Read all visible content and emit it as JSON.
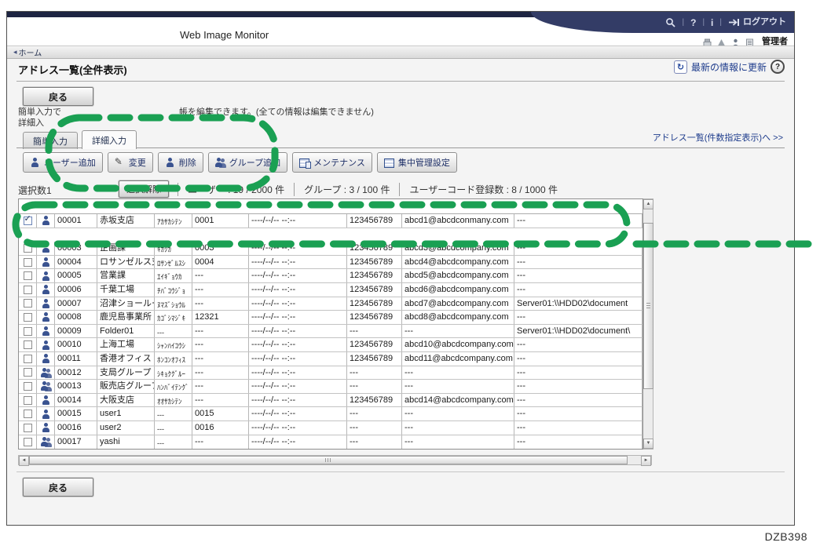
{
  "colors": {
    "banner_navy": "#333c66",
    "banner_dark": "#1d2442",
    "link_blue": "#1e3c8c",
    "annotation_green": "#1aa053"
  },
  "topbar": {
    "product_name": "Web Image Monitor",
    "icons": [
      "search-icon",
      "help-icon",
      "info-icon",
      "logout-icon"
    ],
    "help_glyph": "?",
    "info_glyph": "i",
    "logout_label": "ログアウト",
    "status_icons": [
      "printer-status-icon",
      "alert-status-icon",
      "user-status-icon",
      "document-status-icon"
    ],
    "role_label": "管理者"
  },
  "breadcrumb": {
    "home": "ホーム",
    "arrow": "◂"
  },
  "page": {
    "title": "アドレス一覧(全件表示)",
    "refresh_label": "最新の情報に更新",
    "refresh_glyph": "↻",
    "help_glyph": "?",
    "back_label": "戻る",
    "doc_code": "DZB398"
  },
  "instructions": {
    "line1_start": "簡単入力で",
    "line1_end": "帳を編集できます。(全ての情報は編集できません)",
    "line2_start": "詳細入"
  },
  "tabs": [
    {
      "label": "簡単入力",
      "active": false
    },
    {
      "label": "詳細入力",
      "active": true
    }
  ],
  "toolbar": {
    "buttons": [
      {
        "label": "ユーザー追加",
        "icon": "user-add"
      },
      {
        "label": "変更",
        "icon": "pencil"
      },
      {
        "label": "削除",
        "icon": "user-delete"
      },
      {
        "label": "グループ追加",
        "icon": "group-add"
      },
      {
        "label": "メンテナンス",
        "icon": "maintenance"
      },
      {
        "label": "集中管理設定",
        "icon": "central-management"
      }
    ]
  },
  "links": {
    "count_view": "アドレス一覧(件数指定表示)へ >>"
  },
  "selection": {
    "selected_label": "選択数1",
    "clear_button": "選択解除",
    "stats": [
      "ユーザー : 19 / 2000 件",
      "グループ : 3 / 100 件",
      "ユーザーコード登録数 : 8 / 1000 件"
    ]
  },
  "table": {
    "rows": [
      {
        "checked": true,
        "icon": "user",
        "number": "00001",
        "name": "赤坂支店",
        "kana": "ｱｶｻｶｼﾃﾝ",
        "code": "0001",
        "date": "----/--/-- --:--",
        "fax": "123456789",
        "email": "abcd1@abcdconmany.com",
        "folder": "---"
      },
      {
        "obscured": true,
        "icon": "",
        "number": "",
        "name": "",
        "kana": "",
        "code": "",
        "date": "",
        "fax": "",
        "email": "",
        "folder": ""
      },
      {
        "checked": false,
        "icon": "user",
        "number": "00003",
        "name": "企画課",
        "kana": "ｷｶｸｶ",
        "code": "0003",
        "date": "----/--/-- --:--",
        "fax": "123456789",
        "email": "abcd3@abcdcompany.com",
        "folder": "---"
      },
      {
        "checked": false,
        "icon": "user",
        "number": "00004",
        "name": "ロサンゼルス支局",
        "kana": "ﾛｻﾝｾﾞﾙｽｼ",
        "code": "0004",
        "date": "----/--/-- --:--",
        "fax": "123456789",
        "email": "abcd4@abcdcompany.com",
        "folder": "---"
      },
      {
        "checked": false,
        "icon": "user",
        "number": "00005",
        "name": "営業課",
        "kana": "ｴｲｷﾞｮｳｶ",
        "code": "---",
        "date": "----/--/-- --:--",
        "fax": "123456789",
        "email": "abcd5@abcdcompany.com",
        "folder": "---"
      },
      {
        "checked": false,
        "icon": "user",
        "number": "00006",
        "name": "千葉工場",
        "kana": "ﾁﾊﾞｺｳｼﾞｮ",
        "code": "---",
        "date": "----/--/-- --:--",
        "fax": "123456789",
        "email": "abcd6@abcdcompany.com",
        "folder": "---"
      },
      {
        "checked": false,
        "icon": "user",
        "number": "00007",
        "name": "沼津ショールーム",
        "kana": "ﾇﾏｽﾞｼｮｳﾙ",
        "code": "---",
        "date": "----/--/-- --:--",
        "fax": "123456789",
        "email": "abcd7@abcdcompany.com",
        "folder": "Server01:\\\\HDD02\\document"
      },
      {
        "checked": false,
        "icon": "user",
        "number": "00008",
        "name": "鹿児島事業所",
        "kana": "ｶｺﾞｼﾏｼﾞｷ",
        "code": "12321",
        "date": "----/--/-- --:--",
        "fax": "123456789",
        "email": "abcd8@abcdcompany.com",
        "folder": "---"
      },
      {
        "checked": false,
        "icon": "user",
        "number": "00009",
        "name": "Folder01",
        "kana": "---",
        "code": "---",
        "date": "----/--/-- --:--",
        "fax": "---",
        "email": "---",
        "folder": "Server01:\\\\HDD02\\document\\"
      },
      {
        "checked": false,
        "icon": "user",
        "number": "00010",
        "name": "上海工場",
        "kana": "ｼｬﾝﾊｲｺｳｼ",
        "code": "---",
        "date": "----/--/-- --:--",
        "fax": "123456789",
        "email": "abcd10@abcdcompany.com",
        "folder": "---"
      },
      {
        "checked": false,
        "icon": "user",
        "number": "00011",
        "name": "香港オフィス",
        "kana": "ﾎﾝｺﾝｵﾌｨｽ",
        "code": "---",
        "date": "----/--/-- --:--",
        "fax": "123456789",
        "email": "abcd11@abcdcompany.com",
        "folder": "---"
      },
      {
        "checked": false,
        "icon": "group",
        "number": "00012",
        "name": "支局グループ",
        "kana": "ｼｷｮｸｸﾞﾙｰ",
        "code": "---",
        "date": "----/--/-- --:--",
        "fax": "---",
        "email": "---",
        "folder": "---"
      },
      {
        "checked": false,
        "icon": "group",
        "number": "00013",
        "name": "販売店グループ",
        "kana": "ﾊﾝﾊﾞｲﾃﾝｸﾞ",
        "code": "---",
        "date": "----/--/-- --:--",
        "fax": "---",
        "email": "---",
        "folder": "---"
      },
      {
        "checked": false,
        "icon": "user",
        "number": "00014",
        "name": "大阪支店",
        "kana": "ｵｵｻｶｼﾃﾝ",
        "code": "---",
        "date": "----/--/-- --:--",
        "fax": "123456789",
        "email": "abcd14@abcdcompany.com",
        "folder": "---"
      },
      {
        "checked": false,
        "icon": "user",
        "number": "00015",
        "name": "user1",
        "kana": "---",
        "code": "0015",
        "date": "----/--/-- --:--",
        "fax": "---",
        "email": "---",
        "folder": "---"
      },
      {
        "checked": false,
        "icon": "user",
        "number": "00016",
        "name": "user2",
        "kana": "---",
        "code": "0016",
        "date": "----/--/-- --:--",
        "fax": "---",
        "email": "---",
        "folder": "---"
      },
      {
        "checked": false,
        "icon": "group",
        "number": "00017",
        "name": "yashi",
        "kana": "---",
        "code": "---",
        "date": "----/--/-- --:--",
        "fax": "---",
        "email": "---",
        "folder": "---"
      }
    ]
  }
}
